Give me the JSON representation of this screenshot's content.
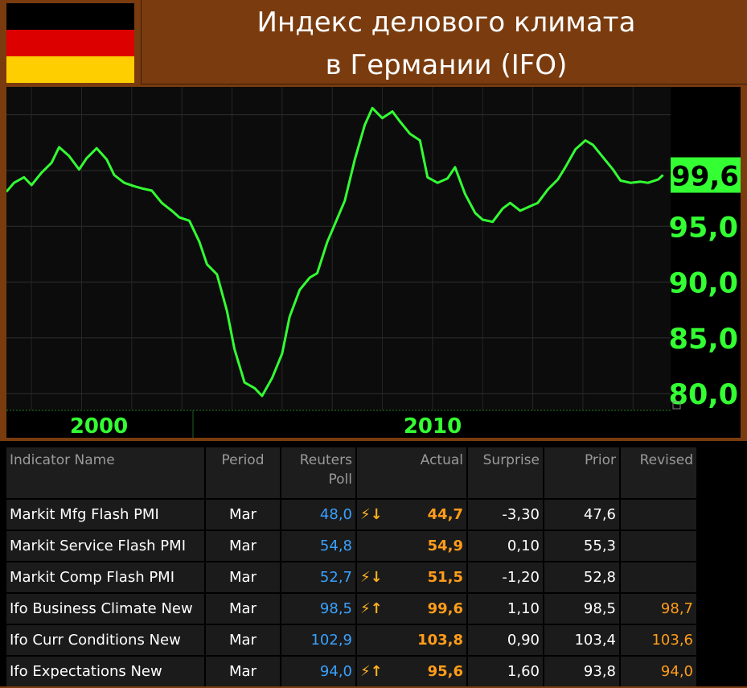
{
  "header": {
    "title_line1": "Индекс делового климата",
    "title_line2": "в Германии (IFO)",
    "flag_colors": [
      "#000000",
      "#dd0000",
      "#ffce00"
    ]
  },
  "chart_data": {
    "type": "line",
    "title": "Индекс делового климата в Германии (IFO)",
    "xlabel": "",
    "ylabel": "",
    "x_ticks": [
      "2000",
      "2010"
    ],
    "y_ticks": [
      "80,0",
      "85,0",
      "90,0",
      "95,0"
    ],
    "last_value_label": "99,6",
    "ylim": [
      78.5,
      107.5
    ],
    "xlim": [
      1991.0,
      2017.5
    ],
    "line_color": "#33ff33",
    "grid": true,
    "x": [
      1991.0,
      1991.3,
      1991.7,
      1992.0,
      1992.4,
      1992.8,
      1993.1,
      1993.5,
      1993.9,
      1994.2,
      1994.6,
      1995.0,
      1995.3,
      1995.7,
      1996.1,
      1996.4,
      1996.8,
      1997.2,
      1997.6,
      1997.9,
      1998.3,
      1998.7,
      1999.0,
      1999.4,
      1999.8,
      2000.1,
      2000.5,
      2000.9,
      2001.2,
      2001.6,
      2002.0,
      2002.3,
      2002.7,
      2003.1,
      2003.4,
      2003.8,
      2004.2,
      2004.5,
      2004.9,
      2005.3,
      2005.6,
      2006.0,
      2006.4,
      2006.7,
      2007.1,
      2007.5,
      2007.8,
      2008.2,
      2008.6,
      2008.9,
      2009.3,
      2009.7,
      2010.0,
      2010.4,
      2010.8,
      2011.1,
      2011.5,
      2011.9,
      2012.2,
      2012.6,
      2013.0,
      2013.3,
      2013.7,
      2014.1,
      2014.4,
      2014.8,
      2015.2,
      2015.5,
      2015.9,
      2016.3,
      2016.6,
      2017.0,
      2017.2
    ],
    "series": [
      {
        "name": "",
        "values": [
          98.1,
          98.9,
          99.4,
          98.7,
          99.8,
          100.7,
          102.1,
          101.3,
          100.1,
          101.1,
          102.0,
          101.0,
          99.6,
          98.9,
          98.6,
          98.4,
          98.2,
          97.1,
          96.4,
          95.8,
          95.5,
          93.6,
          91.6,
          90.7,
          87.4,
          84.0,
          81.0,
          80.5,
          79.8,
          81.4,
          83.6,
          86.9,
          89.3,
          90.4,
          90.8,
          93.6,
          95.7,
          97.3,
          101.0,
          104.1,
          105.6,
          104.7,
          105.3,
          104.4,
          103.3,
          102.7,
          99.4,
          98.9,
          99.3,
          100.3,
          97.9,
          96.2,
          95.6,
          95.4,
          96.6,
          97.1,
          96.4,
          96.8,
          97.1,
          98.3,
          99.2,
          100.3,
          101.9,
          102.7,
          102.3,
          101.2,
          100.1,
          99.1,
          98.9,
          99.0,
          98.9,
          99.2,
          99.6
        ]
      }
    ]
  },
  "table": {
    "headers": {
      "name": "Indicator Name",
      "period": "Period",
      "poll_line1": "Reuters",
      "poll_line2": "Poll",
      "actual": "Actual",
      "surprise": "Surprise",
      "prior": "Prior",
      "revised": "Revised"
    },
    "rows": [
      {
        "name": "Markit Mfg Flash PMI",
        "period": "Mar",
        "poll": "48,0",
        "flag": "⚡↓",
        "actual": "44,7",
        "surprise": "-3,30",
        "prior": "47,6",
        "revised": ""
      },
      {
        "name": "Markit Service Flash PMI",
        "period": "Mar",
        "poll": "54,8",
        "flag": "",
        "actual": "54,9",
        "surprise": "0,10",
        "prior": "55,3",
        "revised": ""
      },
      {
        "name": "Markit Comp Flash PMI",
        "period": "Mar",
        "poll": "52,7",
        "flag": "⚡↓",
        "actual": "51,5",
        "surprise": "-1,20",
        "prior": "52,8",
        "revised": ""
      },
      {
        "name": "Ifo Business Climate New",
        "period": "Mar",
        "poll": "98,5",
        "flag": "⚡↑",
        "actual": "99,6",
        "surprise": "1,10",
        "prior": "98,5",
        "revised": "98,7"
      },
      {
        "name": "Ifo Curr Conditions New",
        "period": "Mar",
        "poll": "102,9",
        "flag": "",
        "actual": "103,8",
        "surprise": "0,90",
        "prior": "103,4",
        "revised": "103,6"
      },
      {
        "name": "Ifo Expectations New",
        "period": "Mar",
        "poll": "94,0",
        "flag": "⚡↑",
        "actual": "95,6",
        "surprise": "1,60",
        "prior": "93,8",
        "revised": "94,0"
      }
    ]
  }
}
